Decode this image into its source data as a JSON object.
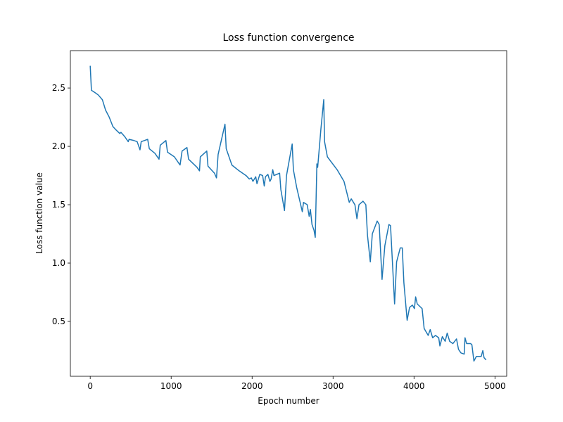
{
  "chart_data": {
    "type": "line",
    "title": "Loss function convergence",
    "x_label": "Epoch number",
    "y_label": "Loss function value",
    "color": "#1f77b4",
    "x": [
      0,
      15,
      60,
      100,
      150,
      190,
      235,
      280,
      320,
      365,
      380,
      430,
      470,
      480,
      540,
      580,
      615,
      630,
      710,
      730,
      800,
      850,
      865,
      935,
      955,
      1040,
      1110,
      1135,
      1195,
      1215,
      1320,
      1350,
      1360,
      1440,
      1455,
      1535,
      1560,
      1580,
      1665,
      1680,
      1750,
      1840,
      1925,
      1965,
      1990,
      2010,
      2045,
      2060,
      2095,
      2130,
      2150,
      2165,
      2195,
      2220,
      2235,
      2255,
      2270,
      2340,
      2355,
      2400,
      2425,
      2495,
      2510,
      2550,
      2620,
      2635,
      2680,
      2705,
      2720,
      2740,
      2765,
      2780,
      2800,
      2810,
      2850,
      2885,
      2895,
      2930,
      3050,
      3135,
      3200,
      3225,
      3270,
      3295,
      3320,
      3370,
      3405,
      3425,
      3460,
      3485,
      3545,
      3570,
      3605,
      3640,
      3690,
      3710,
      3760,
      3785,
      3830,
      3855,
      3875,
      3915,
      3945,
      3980,
      4005,
      4020,
      4040,
      4100,
      4125,
      4175,
      4200,
      4230,
      4265,
      4305,
      4320,
      4350,
      4385,
      4410,
      4440,
      4480,
      4525,
      4550,
      4580,
      4620,
      4630,
      4650,
      4700,
      4715,
      4740,
      4770,
      4830,
      4850,
      4865,
      4890
    ],
    "values": [
      2.69,
      2.48,
      2.46,
      2.44,
      2.4,
      2.31,
      2.25,
      2.17,
      2.14,
      2.11,
      2.12,
      2.08,
      2.04,
      2.06,
      2.05,
      2.04,
      1.97,
      2.04,
      2.06,
      1.98,
      1.94,
      1.89,
      2.01,
      2.05,
      1.95,
      1.91,
      1.84,
      1.96,
      1.99,
      1.89,
      1.82,
      1.79,
      1.91,
      1.96,
      1.83,
      1.77,
      1.73,
      1.93,
      2.19,
      1.98,
      1.84,
      1.79,
      1.75,
      1.72,
      1.73,
      1.7,
      1.74,
      1.68,
      1.76,
      1.75,
      1.66,
      1.74,
      1.76,
      1.7,
      1.72,
      1.8,
      1.75,
      1.77,
      1.63,
      1.45,
      1.75,
      2.02,
      1.8,
      1.65,
      1.44,
      1.52,
      1.5,
      1.4,
      1.46,
      1.33,
      1.28,
      1.22,
      1.85,
      1.82,
      2.15,
      2.4,
      2.04,
      1.91,
      1.8,
      1.7,
      1.52,
      1.55,
      1.5,
      1.38,
      1.5,
      1.53,
      1.5,
      1.24,
      1.01,
      1.25,
      1.36,
      1.33,
      0.86,
      1.15,
      1.33,
      1.32,
      0.65,
      1.01,
      1.13,
      1.13,
      0.83,
      0.51,
      0.62,
      0.64,
      0.61,
      0.71,
      0.65,
      0.61,
      0.44,
      0.38,
      0.43,
      0.36,
      0.38,
      0.36,
      0.29,
      0.37,
      0.33,
      0.4,
      0.33,
      0.31,
      0.35,
      0.26,
      0.23,
      0.22,
      0.36,
      0.31,
      0.31,
      0.3,
      0.16,
      0.2,
      0.2,
      0.25,
      0.19,
      0.17
    ],
    "xlim": [
      -245,
      5145
    ],
    "ylim": [
      0.03,
      2.82
    ],
    "xticks": [
      0,
      1000,
      2000,
      3000,
      4000,
      5000
    ],
    "yticks": [
      0.5,
      {
        "value": 1.0,
        "label": "1.0"
      },
      1.5,
      {
        "value": 2.0,
        "label": "2.0"
      },
      2.5
    ]
  }
}
